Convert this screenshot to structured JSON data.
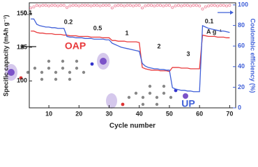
{
  "chart_data": {
    "type": "line",
    "xlabel": "Cycle number",
    "ylabel": "Specific capacity (mAh g⁻¹)",
    "y2label": "Coulombic efficiency (%)",
    "xlim": [
      3.5,
      72
    ],
    "xticks": [
      10,
      20,
      30,
      40,
      50,
      60,
      70
    ],
    "ylim": [
      80,
      158
    ],
    "yticks": [
      100,
      125,
      150
    ],
    "y2lim": [
      0,
      102
    ],
    "y2ticks": [
      0,
      20,
      40,
      60,
      80,
      100
    ],
    "x": [
      4,
      5,
      6,
      7,
      8,
      9,
      10,
      11,
      12,
      13,
      14,
      15,
      16,
      17,
      18,
      19,
      20,
      21,
      22,
      23,
      24,
      25,
      26,
      27,
      28,
      29,
      30,
      31,
      32,
      33,
      34,
      35,
      36,
      37,
      38,
      39,
      40,
      41,
      42,
      43,
      44,
      45,
      46,
      47,
      48,
      49,
      50,
      51,
      52,
      53,
      54,
      55,
      56,
      57,
      58,
      59,
      60,
      61,
      62,
      63,
      64,
      65,
      66,
      67,
      68,
      69,
      70
    ],
    "series": [
      {
        "name": "OAP",
        "color": "#e8393b",
        "values": [
          137,
          137,
          136,
          135.5,
          135.5,
          135,
          135,
          135,
          134.5,
          134.5,
          134.5,
          134,
          134,
          133.5,
          133.5,
          133.5,
          133,
          133,
          133,
          133,
          132.5,
          132.5,
          132.5,
          132.5,
          132,
          132,
          132,
          130,
          130,
          129.5,
          129.5,
          129.5,
          129,
          129,
          129,
          129,
          128.5,
          110,
          109,
          108.5,
          108,
          108,
          108,
          107.5,
          107.5,
          107.5,
          107,
          110,
          110,
          110,
          109.5,
          109.5,
          109.5,
          109,
          109,
          109,
          109,
          134,
          133.5,
          133,
          133,
          133,
          132.5,
          132.5,
          132.5,
          132,
          132
        ]
      },
      {
        "name": "UP",
        "color": "#3f5fd8",
        "values": [
          146,
          146,
          142,
          141,
          140.5,
          140,
          140,
          139.5,
          139.5,
          139,
          139,
          139,
          133,
          132.5,
          132.5,
          132,
          132,
          132,
          131.5,
          131.5,
          131.5,
          131,
          131,
          131,
          131,
          130.5,
          130.5,
          128,
          127,
          126,
          125,
          124.5,
          124,
          123.5,
          123,
          122.5,
          122,
          113,
          111,
          110,
          109.5,
          109,
          109,
          108.5,
          108.5,
          108,
          108,
          95,
          94,
          93.5,
          93,
          93,
          92.5,
          92.5,
          92,
          92,
          92,
          141,
          140,
          139,
          138.5,
          138,
          137.5,
          137,
          137,
          136.5,
          136
        ]
      },
      {
        "name": "Coulombic efficiency",
        "axis": "y2",
        "color": "#f08aa0",
        "values": [
          97,
          98,
          99.5,
          99,
          99.5,
          99.5,
          99,
          99.5,
          99.5,
          99,
          99.5,
          99.5,
          97.5,
          99,
          99.5,
          99.5,
          99,
          99.5,
          99.5,
          99.5,
          99,
          99.5,
          99.5,
          99,
          99.5,
          99.5,
          99.5,
          97,
          99,
          99.5,
          99.5,
          99,
          99.5,
          99.5,
          99,
          99.5,
          99.5,
          97,
          99,
          99.5,
          99.5,
          99,
          99.5,
          99.5,
          99,
          99.5,
          99.5,
          97.5,
          99,
          99.5,
          99,
          99.5,
          99.5,
          99,
          99.5,
          99.5,
          99,
          96,
          98,
          99,
          99.5,
          99.5,
          99,
          99.5,
          99.5,
          99,
          99.5
        ]
      }
    ],
    "annotations": [
      "0.1",
      "0.2",
      "0.5",
      "1",
      "2",
      "3",
      "0.1",
      "A g⁻¹",
      "OAP",
      "UP"
    ]
  }
}
